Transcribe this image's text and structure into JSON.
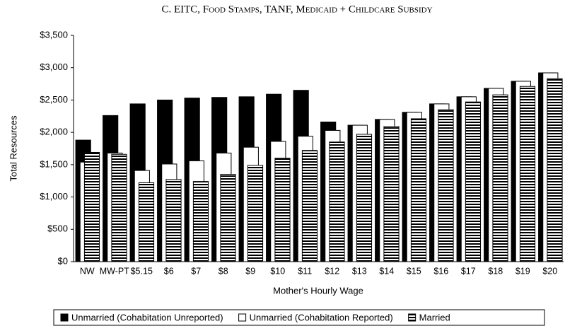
{
  "chart_data": {
    "type": "bar",
    "title": "C. EITC, Food Stamps, TANF, Medicaid + Childcare Subsidy",
    "x_label": "Mother's Hourly Wage",
    "y_label": "Total Resources",
    "categories": [
      "NW",
      "MW-PT",
      "$5.15",
      "$6",
      "$7",
      "$8",
      "$9",
      "$10",
      "$11",
      "$12",
      "$13",
      "$14",
      "$15",
      "$16",
      "$17",
      "$18",
      "$19",
      "$20"
    ],
    "series": [
      {
        "name": "Unmarried (Cohabitation Unreported)",
        "color": "#000000",
        "values": [
          1880,
          2260,
          2440,
          2500,
          2530,
          2540,
          2550,
          2590,
          2650,
          2160,
          2110,
          2200,
          2310,
          2440,
          2550,
          2680,
          2790,
          2920
        ]
      },
      {
        "name": "Unmarried (Cohabitation Reported)",
        "color": "#ffffff",
        "values": [
          1540,
          1680,
          1410,
          1510,
          1560,
          1680,
          1770,
          1860,
          1940,
          2030,
          2110,
          2200,
          2310,
          2440,
          2550,
          2680,
          2790,
          2920
        ]
      },
      {
        "name": "Married",
        "color": "#000000",
        "hatch": "horizontal",
        "values": [
          1690,
          1660,
          1220,
          1270,
          1240,
          1350,
          1490,
          1600,
          1720,
          1850,
          1970,
          2090,
          2210,
          2350,
          2470,
          2580,
          2710,
          2830
        ]
      }
    ],
    "ylim": [
      0,
      3500
    ],
    "yticks": [
      {
        "value": 0,
        "label": "$0"
      },
      {
        "value": 500,
        "label": "$500"
      },
      {
        "value": 1000,
        "label": "$1,000"
      },
      {
        "value": 1500,
        "label": "$1,500"
      },
      {
        "value": 2000,
        "label": "$2,000"
      },
      {
        "value": 2500,
        "label": "$2,500"
      },
      {
        "value": 3000,
        "label": "$3,000"
      },
      {
        "value": 3500,
        "label": "$3,500"
      }
    ],
    "grid": false,
    "legend": "bottom"
  }
}
